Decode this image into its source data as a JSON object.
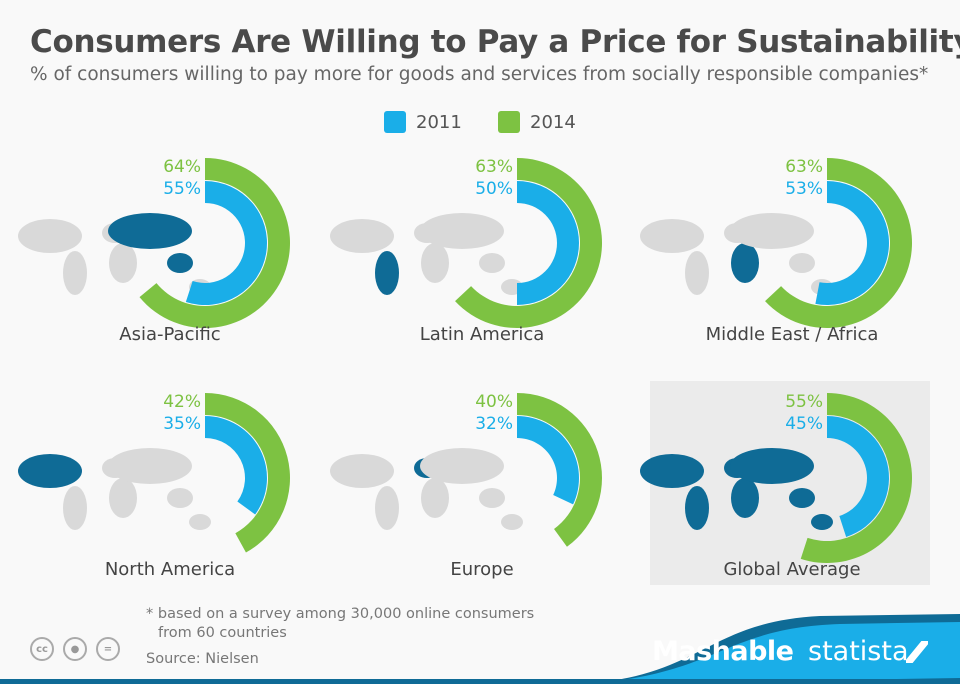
{
  "chart_data": {
    "type": "donut",
    "title": "Consumers Are Willing to Pay a Price for Sustainability",
    "subtitle": "% of consumers willing to pay more for goods and services from socially responsible companies*",
    "legend": [
      {
        "name": "2011",
        "color": "#1aaee8"
      },
      {
        "name": "2014",
        "color": "#7dc242"
      }
    ],
    "legend_placement": "top-center",
    "regions": [
      {
        "name": "Asia-Pacific",
        "v2011": 55,
        "v2014": 64,
        "label2011": "55%",
        "label2014": "64%"
      },
      {
        "name": "Latin America",
        "v2011": 50,
        "v2014": 63,
        "label2011": "50%",
        "label2014": "63%"
      },
      {
        "name": "Middle East / Africa",
        "v2011": 53,
        "v2014": 63,
        "label2011": "53%",
        "label2014": "63%"
      },
      {
        "name": "North America",
        "v2011": 35,
        "v2014": 42,
        "label2011": "35%",
        "label2014": "42%"
      },
      {
        "name": "Europe",
        "v2011": 32,
        "v2014": 40,
        "label2011": "32%",
        "label2014": "40%"
      },
      {
        "name": "Global Average",
        "v2011": 45,
        "v2014": 55,
        "label2011": "45%",
        "label2014": "55%"
      }
    ],
    "colors": {
      "highlight": "#0f6b96",
      "map": "#d9d9d9"
    }
  },
  "footer": {
    "note_line1": "* based on a survey among 30,000 online consumers",
    "note_line2": "from 60 countries",
    "source": "Source: Nielsen",
    "license_icons": [
      "cc",
      "by",
      "nd"
    ],
    "cc": "cc",
    "nd": "=",
    "brand1": "Mashable",
    "brand2": "statista"
  }
}
